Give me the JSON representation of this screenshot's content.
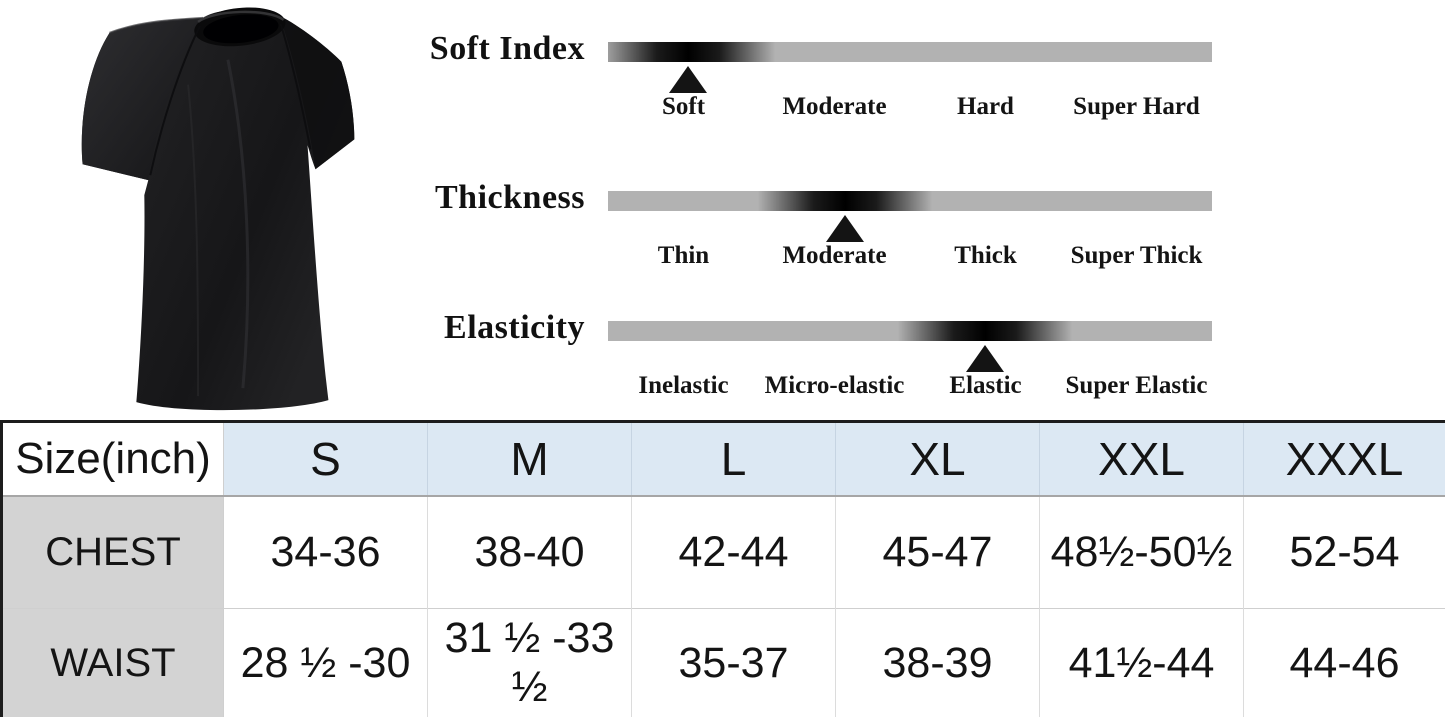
{
  "product": {
    "image_alt": "Black short-sleeve crew-neck t-shirt",
    "shirt_color": "#1b1b1d"
  },
  "attributes": {
    "bar_color": "#b2b2b2",
    "marker_color": "#141414",
    "rows": [
      {
        "label": "Soft Index",
        "selected": "Soft",
        "pos_pct": 13.3,
        "options": [
          "Soft",
          "Moderate",
          "Hard",
          "Super Hard"
        ]
      },
      {
        "label": "Thickness",
        "selected": "Moderate",
        "pos_pct": 39.2,
        "options": [
          "Thin",
          "Moderate",
          "Thick",
          "Super Thick"
        ]
      },
      {
        "label": "Elasticity",
        "selected": "Elastic",
        "pos_pct": 62.4,
        "options": [
          "Inelastic",
          "Micro-elastic",
          "Elastic",
          "Super Elastic"
        ]
      }
    ]
  },
  "size_table": {
    "colors": {
      "header_bg": "#dce8f3",
      "label_bg": "#d3d3d3",
      "border": "#1d1d1d"
    },
    "header": [
      "Size(inch)",
      "S",
      "M",
      "L",
      "XL",
      "XXL",
      "XXXL"
    ],
    "rows": [
      {
        "label": "CHEST",
        "values": [
          "34-36",
          "38-40",
          "42-44",
          "45-47",
          "48½-50½",
          "52-54"
        ]
      },
      {
        "label": "WAIST",
        "values": [
          "28 ½ -30",
          "31 ½ -33 ½",
          "35-37",
          "38-39",
          "41½-44",
          "44-46"
        ]
      }
    ]
  }
}
